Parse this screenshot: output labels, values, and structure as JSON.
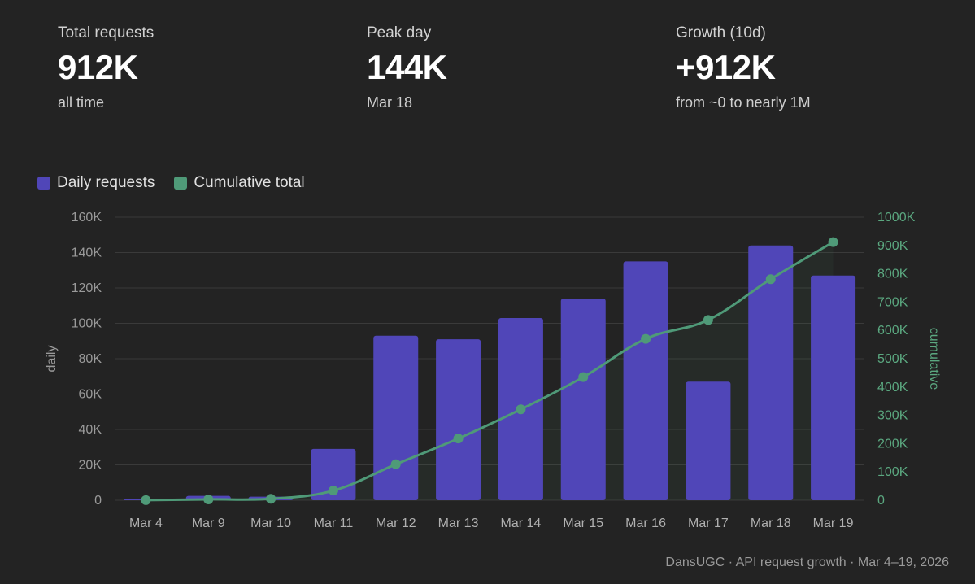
{
  "stats": [
    {
      "label": "Total requests",
      "value": "912K",
      "sub": "all time"
    },
    {
      "label": "Peak day",
      "value": "144K",
      "sub": "Mar 18"
    },
    {
      "label": "Growth (10d)",
      "value": "+912K",
      "sub": "from ~0 to nearly 1M"
    }
  ],
  "legend": {
    "daily": {
      "label": "Daily requests",
      "color": "#5046b8"
    },
    "cumulative": {
      "label": "Cumulative total",
      "color": "#4f9a78"
    }
  },
  "chart_data": {
    "type": "bar+line",
    "categories": [
      "Mar 4",
      "Mar 9",
      "Mar 10",
      "Mar 11",
      "Mar 12",
      "Mar 13",
      "Mar 14",
      "Mar 15",
      "Mar 16",
      "Mar 17",
      "Mar 18",
      "Mar 19"
    ],
    "series": [
      {
        "name": "Daily requests",
        "type": "bar",
        "axis": "left",
        "values": [
          500,
          2500,
          2000,
          29000,
          93000,
          91000,
          103000,
          114000,
          135000,
          67000,
          144000,
          127000
        ]
      },
      {
        "name": "Cumulative total",
        "type": "line",
        "axis": "right",
        "values": [
          500,
          3000,
          5000,
          34000,
          127000,
          218000,
          321000,
          435000,
          570000,
          637000,
          781000,
          912000
        ]
      }
    ],
    "ylabel": "daily",
    "ylabel_right": "cumulative",
    "ylim": [
      0,
      160000
    ],
    "ylim_right": [
      0,
      1000000
    ],
    "yticks": [
      "0",
      "20K",
      "40K",
      "60K",
      "80K",
      "100K",
      "120K",
      "140K",
      "160K"
    ],
    "yticks_right": [
      "0",
      "100K",
      "200K",
      "300K",
      "400K",
      "500K",
      "600K",
      "700K",
      "800K",
      "900K",
      "1000K"
    ],
    "grid": true,
    "legend_position": "top-left"
  },
  "footer": "DansUGC · API request growth · Mar 4–19, 2026"
}
